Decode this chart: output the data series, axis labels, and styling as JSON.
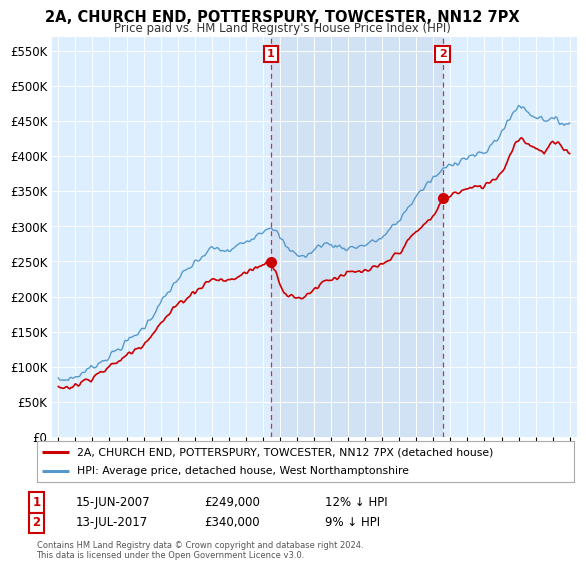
{
  "title": "2A, CHURCH END, POTTERSPURY, TOWCESTER, NN12 7PX",
  "subtitle": "Price paid vs. HM Land Registry's House Price Index (HPI)",
  "ylabel_ticks": [
    "£0",
    "£50K",
    "£100K",
    "£150K",
    "£200K",
    "£250K",
    "£300K",
    "£350K",
    "£400K",
    "£450K",
    "£500K",
    "£550K"
  ],
  "ytick_values": [
    0,
    50000,
    100000,
    150000,
    200000,
    250000,
    300000,
    350000,
    400000,
    450000,
    500000,
    550000
  ],
  "ylim": [
    0,
    570000
  ],
  "background_color": "#ddeeff",
  "line_color_red": "#cc0000",
  "line_color_blue": "#5599cc",
  "marker1_x": 2007.46,
  "marker1_y": 249000,
  "marker2_x": 2017.54,
  "marker2_y": 340000,
  "annotation1_date": "15-JUN-2007",
  "annotation1_price": "£249,000",
  "annotation1_hpi": "12% ↓ HPI",
  "annotation2_date": "13-JUL-2017",
  "annotation2_price": "£340,000",
  "annotation2_hpi": "9% ↓ HPI",
  "legend_line1": "2A, CHURCH END, POTTERSPURY, TOWCESTER, NN12 7PX (detached house)",
  "legend_line2": "HPI: Average price, detached house, West Northamptonshire",
  "footer": "Contains HM Land Registry data © Crown copyright and database right 2024.\nThis data is licensed under the Open Government Licence v3.0.",
  "xlim_start": 1994.6,
  "xlim_end": 2025.4
}
